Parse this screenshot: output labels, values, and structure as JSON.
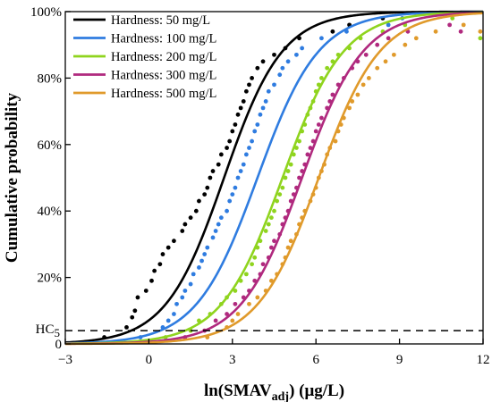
{
  "chart_data": {
    "type": "line",
    "title": "",
    "xlabel": "ln(SMAV",
    "xlabel_sub": "adj",
    "xlabel_suffix": ") (μg/L)",
    "ylabel": "Cumulative probability",
    "xlim": [
      -3,
      12
    ],
    "ylim": [
      0,
      100
    ],
    "x_ticks": [
      -3,
      0,
      3,
      6,
      9,
      12
    ],
    "x_tick_labels": [
      "−3",
      "0",
      "3",
      "6",
      "9",
      "12"
    ],
    "y_ticks": [
      0,
      20,
      40,
      60,
      80,
      100
    ],
    "y_tick_labels": [
      "0",
      "20%",
      "40%",
      "60%",
      "80%",
      "100%"
    ],
    "grid": false,
    "legend_position": "top-left",
    "hc5": {
      "label": "HC",
      "label_sub": "5",
      "y": 4,
      "style": "dashed"
    },
    "series": [
      {
        "name": "Hardness: 50 mg/L",
        "color": "#000000",
        "mu": 2.7,
        "s": 1.05,
        "points": [
          [
            -1.6,
            2
          ],
          [
            -0.8,
            5
          ],
          [
            -0.6,
            8
          ],
          [
            -0.5,
            10
          ],
          [
            -0.4,
            14
          ],
          [
            -0.1,
            16
          ],
          [
            0.1,
            19
          ],
          [
            0.2,
            22
          ],
          [
            0.4,
            24
          ],
          [
            0.5,
            27
          ],
          [
            0.7,
            29
          ],
          [
            0.9,
            31
          ],
          [
            1.2,
            34
          ],
          [
            1.3,
            36
          ],
          [
            1.5,
            38
          ],
          [
            1.7,
            40
          ],
          [
            1.8,
            43
          ],
          [
            2,
            45
          ],
          [
            2.1,
            47
          ],
          [
            2.2,
            50
          ],
          [
            2.3,
            52
          ],
          [
            2.5,
            54
          ],
          [
            2.6,
            57
          ],
          [
            2.8,
            59
          ],
          [
            2.9,
            61
          ],
          [
            3,
            64
          ],
          [
            3.1,
            66
          ],
          [
            3.2,
            69
          ],
          [
            3.3,
            71
          ],
          [
            3.4,
            73
          ],
          [
            3.5,
            76
          ],
          [
            3.6,
            78
          ],
          [
            3.7,
            80
          ],
          [
            3.9,
            83
          ],
          [
            4.1,
            85
          ],
          [
            4.5,
            87
          ],
          [
            4.9,
            89
          ],
          [
            5.4,
            92
          ],
          [
            6.6,
            94
          ],
          [
            7.2,
            96
          ],
          [
            8.4,
            98
          ]
        ]
      },
      {
        "name": "Hardness: 100 mg/L",
        "color": "#2f7ce0",
        "mu": 3.9,
        "s": 1.1,
        "points": [
          [
            -0.3,
            2
          ],
          [
            0.5,
            5
          ],
          [
            0.7,
            7
          ],
          [
            0.9,
            9
          ],
          [
            1.0,
            12
          ],
          [
            1.2,
            14
          ],
          [
            1.3,
            16
          ],
          [
            1.5,
            18
          ],
          [
            1.6,
            21
          ],
          [
            1.8,
            23
          ],
          [
            1.9,
            25
          ],
          [
            2.0,
            27
          ],
          [
            2.1,
            29
          ],
          [
            2.3,
            32
          ],
          [
            2.4,
            34
          ],
          [
            2.5,
            36
          ],
          [
            2.6,
            38
          ],
          [
            2.8,
            40
          ],
          [
            2.9,
            43
          ],
          [
            3.0,
            45
          ],
          [
            3.1,
            47
          ],
          [
            3.2,
            50
          ],
          [
            3.3,
            52
          ],
          [
            3.4,
            54
          ],
          [
            3.5,
            57
          ],
          [
            3.6,
            59
          ],
          [
            3.7,
            61
          ],
          [
            3.8,
            64
          ],
          [
            3.9,
            66
          ],
          [
            4.0,
            69
          ],
          [
            4.1,
            71
          ],
          [
            4.2,
            73
          ],
          [
            4.3,
            76
          ],
          [
            4.5,
            78
          ],
          [
            4.7,
            81
          ],
          [
            4.8,
            83
          ],
          [
            5.0,
            85
          ],
          [
            5.3,
            87
          ],
          [
            5.5,
            89
          ],
          [
            6.2,
            92
          ],
          [
            7.1,
            94
          ],
          [
            8.6,
            96
          ],
          [
            9.1,
            98
          ]
        ]
      },
      {
        "name": "Hardness: 200 mg/L",
        "color": "#8fd41e",
        "mu": 4.8,
        "s": 1.1,
        "points": [
          [
            0.6,
            2
          ],
          [
            1.5,
            4
          ],
          [
            1.8,
            7
          ],
          [
            2.2,
            9
          ],
          [
            2.6,
            12
          ],
          [
            2.8,
            14
          ],
          [
            3.1,
            16
          ],
          [
            3.3,
            19
          ],
          [
            3.5,
            21
          ],
          [
            3.7,
            24
          ],
          [
            3.8,
            26
          ],
          [
            3.9,
            29
          ],
          [
            4.0,
            31
          ],
          [
            4.2,
            34
          ],
          [
            4.3,
            36
          ],
          [
            4.4,
            38
          ],
          [
            4.5,
            40
          ],
          [
            4.6,
            43
          ],
          [
            4.7,
            45
          ],
          [
            4.8,
            47
          ],
          [
            4.9,
            50
          ],
          [
            5.0,
            52
          ],
          [
            5.1,
            54
          ],
          [
            5.2,
            57
          ],
          [
            5.3,
            59
          ],
          [
            5.4,
            61
          ],
          [
            5.5,
            64
          ],
          [
            5.6,
            66
          ],
          [
            5.7,
            69
          ],
          [
            5.8,
            71
          ],
          [
            5.9,
            73
          ],
          [
            6.0,
            76
          ],
          [
            6.1,
            78
          ],
          [
            6.2,
            80
          ],
          [
            6.4,
            83
          ],
          [
            6.6,
            85
          ],
          [
            6.8,
            87
          ],
          [
            7.2,
            89
          ],
          [
            7.6,
            92
          ],
          [
            8.4,
            94
          ],
          [
            9.2,
            96
          ],
          [
            10.9,
            98
          ],
          [
            11.9,
            92
          ]
        ]
      },
      {
        "name": "Hardness: 300 mg/L",
        "color": "#b0297e",
        "mu": 5.5,
        "s": 1.1,
        "points": [
          [
            1.3,
            2
          ],
          [
            2.0,
            4
          ],
          [
            2.4,
            7
          ],
          [
            2.8,
            9
          ],
          [
            3.1,
            12
          ],
          [
            3.4,
            14
          ],
          [
            3.6,
            16
          ],
          [
            3.8,
            19
          ],
          [
            4.0,
            21
          ],
          [
            4.1,
            24
          ],
          [
            4.3,
            26
          ],
          [
            4.4,
            29
          ],
          [
            4.5,
            31
          ],
          [
            4.7,
            33
          ],
          [
            4.8,
            36
          ],
          [
            4.9,
            38
          ],
          [
            5.0,
            40
          ],
          [
            5.1,
            43
          ],
          [
            5.2,
            45
          ],
          [
            5.3,
            47
          ],
          [
            5.4,
            50
          ],
          [
            5.5,
            52
          ],
          [
            5.6,
            54
          ],
          [
            5.7,
            57
          ],
          [
            5.8,
            59
          ],
          [
            5.9,
            61
          ],
          [
            6.0,
            64
          ],
          [
            6.1,
            66
          ],
          [
            6.2,
            68
          ],
          [
            6.4,
            71
          ],
          [
            6.5,
            73
          ],
          [
            6.6,
            75
          ],
          [
            6.8,
            78
          ],
          [
            7.0,
            80
          ],
          [
            7.3,
            83
          ],
          [
            7.5,
            85
          ],
          [
            7.8,
            87
          ],
          [
            8.2,
            90
          ],
          [
            8.6,
            92
          ],
          [
            9.3,
            94
          ],
          [
            10.8,
            96
          ],
          [
            11.2,
            94
          ]
        ]
      },
      {
        "name": "Hardness: 500 mg/L",
        "color": "#e09a2b",
        "mu": 6.1,
        "s": 1.1,
        "points": [
          [
            2.1,
            2
          ],
          [
            2.8,
            5
          ],
          [
            3.0,
            7
          ],
          [
            3.2,
            9
          ],
          [
            3.6,
            12
          ],
          [
            3.9,
            14
          ],
          [
            4.2,
            16
          ],
          [
            4.4,
            19
          ],
          [
            4.6,
            21
          ],
          [
            4.8,
            24
          ],
          [
            4.9,
            26
          ],
          [
            5.0,
            29
          ],
          [
            5.1,
            31
          ],
          [
            5.3,
            33
          ],
          [
            5.4,
            36
          ],
          [
            5.5,
            38
          ],
          [
            5.6,
            40
          ],
          [
            5.8,
            43
          ],
          [
            5.9,
            45
          ],
          [
            6.0,
            47
          ],
          [
            6.1,
            50
          ],
          [
            6.2,
            52
          ],
          [
            6.3,
            54
          ],
          [
            6.4,
            57
          ],
          [
            6.5,
            59
          ],
          [
            6.7,
            61
          ],
          [
            6.8,
            64
          ],
          [
            6.9,
            66
          ],
          [
            7.0,
            68
          ],
          [
            7.2,
            71
          ],
          [
            7.3,
            73
          ],
          [
            7.5,
            75
          ],
          [
            7.7,
            78
          ],
          [
            7.9,
            80
          ],
          [
            8.2,
            83
          ],
          [
            8.5,
            85
          ],
          [
            8.8,
            87
          ],
          [
            9.2,
            90
          ],
          [
            9.6,
            92
          ],
          [
            10.3,
            94
          ],
          [
            11.3,
            96
          ],
          [
            11.9,
            94
          ]
        ]
      }
    ]
  }
}
